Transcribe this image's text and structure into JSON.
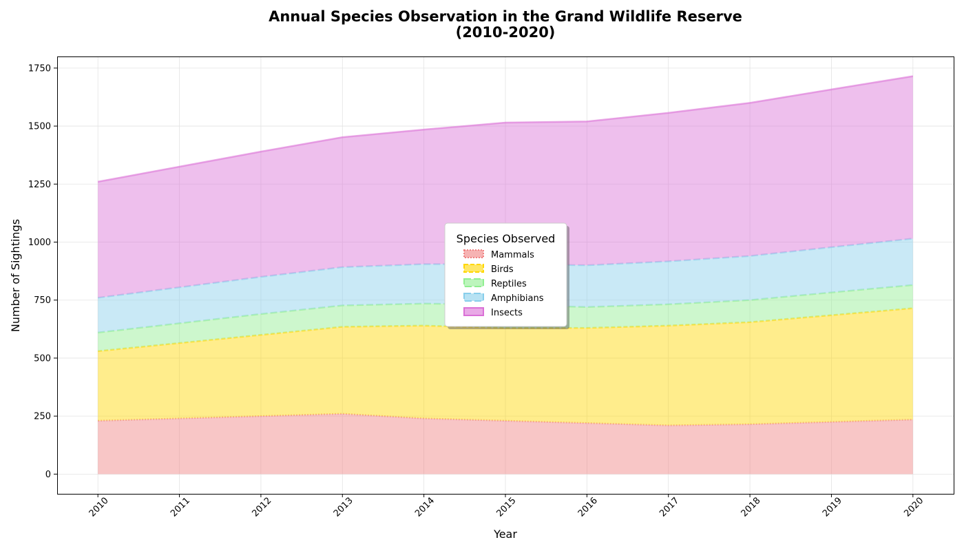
{
  "chart_data": {
    "type": "area",
    "stacked": true,
    "title_lines": [
      "Annual Species Observation in the Grand Wildlife Reserve",
      "(2010-2020)"
    ],
    "xlabel": "Year",
    "ylabel": "Number of Sightings",
    "x": [
      2010,
      2011,
      2012,
      2013,
      2014,
      2015,
      2016,
      2017,
      2018,
      2019,
      2020
    ],
    "ylim": [
      -85,
      1800
    ],
    "yticks": [
      0,
      250,
      500,
      750,
      1000,
      1250,
      1500,
      1750
    ],
    "grid": true,
    "legend": {
      "title": "Species Observed",
      "placement": "center"
    },
    "series": [
      {
        "name": "Mammals",
        "color": "#F08080",
        "values": [
          230,
          240,
          250,
          260,
          240,
          230,
          220,
          210,
          215,
          225,
          235
        ]
      },
      {
        "name": "Birds",
        "color": "#FFD700",
        "values": [
          300,
          325,
          350,
          375,
          400,
          400,
          410,
          430,
          440,
          460,
          480
        ]
      },
      {
        "name": "Reptiles",
        "color": "#90EE90",
        "values": [
          80,
          85,
          90,
          92,
          95,
          100,
          90,
          92,
          95,
          98,
          100
        ]
      },
      {
        "name": "Amphibians",
        "color": "#87CEEB",
        "values": [
          150,
          155,
          160,
          165,
          170,
          175,
          180,
          185,
          190,
          195,
          200
        ]
      },
      {
        "name": "Insects",
        "color": "#DA70D6",
        "values": [
          500,
          520,
          540,
          560,
          580,
          610,
          620,
          640,
          660,
          680,
          700
        ]
      }
    ]
  }
}
